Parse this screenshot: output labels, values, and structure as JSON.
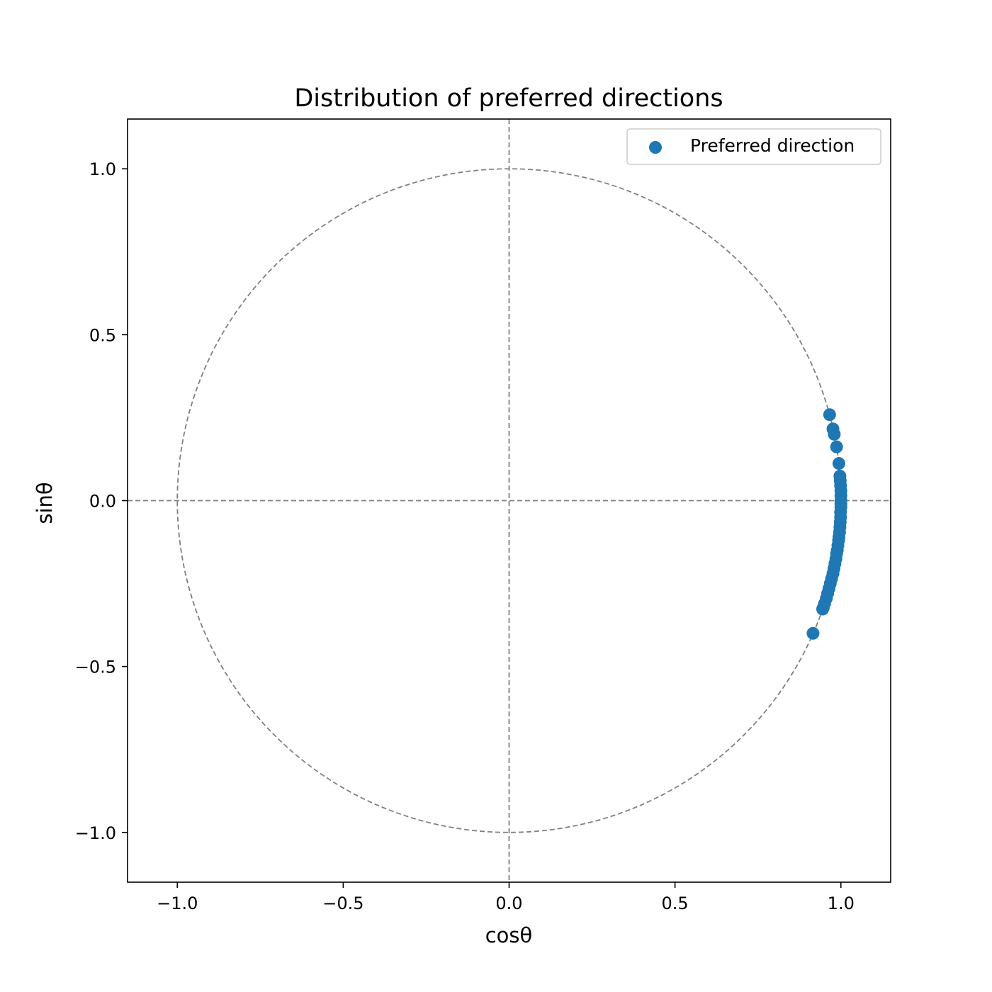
{
  "chart_data": {
    "type": "scatter",
    "title": "Distribution of preferred directions",
    "xlabel": "cosθ",
    "ylabel": "sinθ",
    "xlim": [
      -1.15,
      1.15
    ],
    "ylim": [
      -1.15,
      1.15
    ],
    "xticks": [
      {
        "value": -1.0,
        "label": "−1.0"
      },
      {
        "value": -0.5,
        "label": "−0.5"
      },
      {
        "value": 0.0,
        "label": "0.0"
      },
      {
        "value": 0.5,
        "label": "0.5"
      },
      {
        "value": 1.0,
        "label": "1.0"
      }
    ],
    "yticks": [
      {
        "value": 1.0,
        "label": "1.0"
      },
      {
        "value": 0.5,
        "label": "0.5"
      },
      {
        "value": 0.0,
        "label": "0.0"
      },
      {
        "value": -0.5,
        "label": "−0.5"
      },
      {
        "value": -1.0,
        "label": "−1.0"
      }
    ],
    "grid": false,
    "legend_position": "top-right",
    "reference_lines": {
      "unit_circle": true,
      "horizontal_at_y": 0,
      "vertical_at_x": 0,
      "style": "dashed",
      "color": "#808080"
    },
    "series": [
      {
        "name": "Preferred direction",
        "color": "#1f77b4",
        "points": [
          {
            "x": 0.966,
            "y": 0.259
          },
          {
            "x": 0.976,
            "y": 0.216
          },
          {
            "x": 0.98,
            "y": 0.2
          },
          {
            "x": 0.987,
            "y": 0.162
          },
          {
            "x": 0.994,
            "y": 0.112
          },
          {
            "x": 0.997,
            "y": 0.074
          },
          {
            "x": 0.998,
            "y": 0.06
          },
          {
            "x": 0.999,
            "y": 0.045
          },
          {
            "x": 1.0,
            "y": 0.03
          },
          {
            "x": 1.0,
            "y": 0.015
          },
          {
            "x": 1.0,
            "y": 0.0
          },
          {
            "x": 1.0,
            "y": -0.01
          },
          {
            "x": 1.0,
            "y": -0.02
          },
          {
            "x": 0.999,
            "y": -0.035
          },
          {
            "x": 0.999,
            "y": -0.05
          },
          {
            "x": 0.998,
            "y": -0.065
          },
          {
            "x": 0.997,
            "y": -0.08
          },
          {
            "x": 0.996,
            "y": -0.095
          },
          {
            "x": 0.994,
            "y": -0.11
          },
          {
            "x": 0.993,
            "y": -0.12
          },
          {
            "x": 0.991,
            "y": -0.135
          },
          {
            "x": 0.989,
            "y": -0.15
          },
          {
            "x": 0.987,
            "y": -0.16
          },
          {
            "x": 0.985,
            "y": -0.175
          },
          {
            "x": 0.982,
            "y": -0.19
          },
          {
            "x": 0.979,
            "y": -0.205
          },
          {
            "x": 0.976,
            "y": -0.22
          },
          {
            "x": 0.972,
            "y": -0.235
          },
          {
            "x": 0.968,
            "y": -0.25
          },
          {
            "x": 0.964,
            "y": -0.265
          },
          {
            "x": 0.96,
            "y": -0.28
          },
          {
            "x": 0.956,
            "y": -0.295
          },
          {
            "x": 0.951,
            "y": -0.31
          },
          {
            "x": 0.947,
            "y": -0.322
          },
          {
            "x": 0.945,
            "y": -0.327
          },
          {
            "x": 0.916,
            "y": -0.4
          }
        ]
      }
    ]
  }
}
